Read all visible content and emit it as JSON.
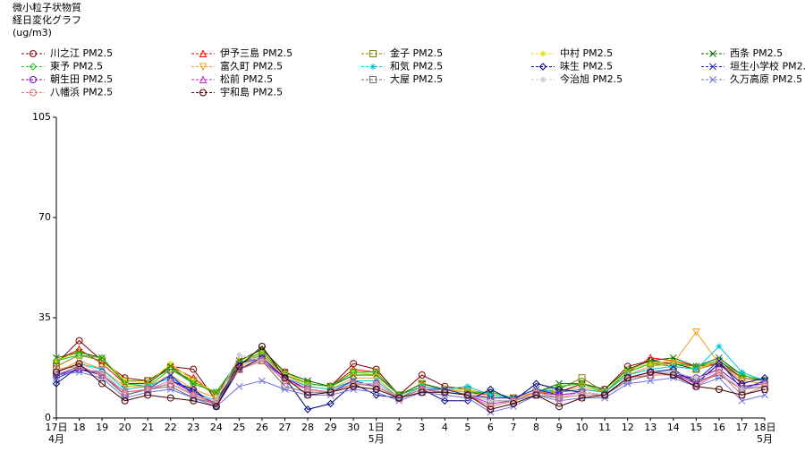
{
  "chart_data": {
    "type": "line",
    "title_lines": [
      "微小粒子状物質",
      "経日変化グラフ",
      "(ug/m3)"
    ],
    "categories": [
      "17日",
      "18",
      "19",
      "20",
      "21",
      "22",
      "23",
      "24",
      "25",
      "26",
      "27",
      "28",
      "29",
      "30",
      "1日",
      "2",
      "3",
      "4",
      "5",
      "6",
      "7",
      "8",
      "9",
      "10",
      "11",
      "12",
      "13",
      "14",
      "15",
      "16",
      "17",
      "18日"
    ],
    "month_labels": [
      "4月",
      null,
      null,
      null,
      null,
      null,
      null,
      null,
      null,
      null,
      null,
      null,
      null,
      null,
      "5月",
      null,
      null,
      null,
      null,
      null,
      null,
      null,
      null,
      null,
      null,
      null,
      null,
      null,
      null,
      null,
      null,
      "5月"
    ],
    "ylim": [
      0,
      105
    ],
    "yticks": [
      0,
      35,
      70,
      105
    ],
    "grid": false,
    "series": [
      {
        "name": "川之江 PM2.5",
        "color": "#800000",
        "marker": "circle",
        "values": [
          19,
          27,
          20,
          14,
          13,
          18,
          17,
          6,
          19,
          23,
          16,
          12,
          11,
          19,
          17,
          8,
          15,
          11,
          10,
          8,
          7,
          9,
          9,
          12,
          10,
          18,
          20,
          19,
          17,
          20,
          14,
          13
        ]
      },
      {
        "name": "伊予三島 PM2.5",
        "color": "#ff0000",
        "marker": "triangle",
        "values": [
          20,
          24,
          19,
          12,
          12,
          18,
          14,
          8,
          20,
          24,
          16,
          12,
          11,
          17,
          16,
          8,
          12,
          10,
          9,
          8,
          7,
          9,
          9,
          10,
          9,
          16,
          21,
          20,
          18,
          19,
          14,
          13
        ]
      },
      {
        "name": "金子 PM2.5",
        "color": "#808000",
        "marker": "square",
        "values": [
          18,
          22,
          20,
          13,
          13,
          17,
          13,
          8,
          19,
          22,
          15,
          12,
          11,
          16,
          16,
          8,
          12,
          10,
          10,
          8,
          7,
          9,
          10,
          14,
          9,
          16,
          19,
          18,
          17,
          19,
          14,
          13
        ]
      },
      {
        "name": "中村 PM2.5",
        "color": "#e0e000",
        "marker": "star",
        "values": [
          20,
          23,
          21,
          13,
          12,
          19,
          13,
          9,
          20,
          23,
          16,
          12,
          11,
          16,
          15,
          8,
          12,
          10,
          10,
          8,
          7,
          9,
          11,
          12,
          9,
          17,
          19,
          20,
          17,
          20,
          15,
          13
        ]
      },
      {
        "name": "西条 PM2.5",
        "color": "#006400",
        "marker": "x",
        "values": [
          21,
          23,
          21,
          12,
          12,
          18,
          12,
          9,
          20,
          24,
          16,
          13,
          11,
          15,
          15,
          8,
          12,
          10,
          9,
          9,
          7,
          9,
          12,
          12,
          10,
          17,
          20,
          21,
          18,
          21,
          15,
          13
        ]
      },
      {
        "name": "東予 PM2.5",
        "color": "#22c022",
        "marker": "diamond",
        "values": [
          20,
          22,
          21,
          12,
          11,
          17,
          12,
          9,
          19,
          23,
          15,
          12,
          11,
          16,
          16,
          8,
          11,
          10,
          9,
          9,
          7,
          9,
          11,
          12,
          9,
          16,
          19,
          19,
          18,
          20,
          15,
          13
        ]
      },
      {
        "name": "富久町 PM2.5",
        "color": "#f0a020",
        "marker": "downtriangle",
        "values": [
          16,
          20,
          17,
          11,
          11,
          15,
          10,
          7,
          18,
          21,
          15,
          11,
          10,
          14,
          14,
          7,
          11,
          10,
          9,
          7,
          7,
          9,
          9,
          11,
          9,
          15,
          18,
          19,
          30,
          19,
          13,
          12
        ]
      },
      {
        "name": "和気 PM2.5",
        "color": "#00c8d8",
        "marker": "star",
        "values": [
          16,
          19,
          17,
          10,
          11,
          14,
          9,
          6,
          17,
          21,
          14,
          11,
          10,
          13,
          13,
          7,
          11,
          10,
          11,
          8,
          7,
          10,
          9,
          10,
          9,
          15,
          17,
          18,
          17,
          25,
          16,
          13
        ]
      },
      {
        "name": "味生 PM2.5",
        "color": "#000080",
        "marker": "diamond",
        "values": [
          12,
          18,
          15,
          8,
          10,
          13,
          10,
          4,
          17,
          21,
          14,
          3,
          5,
          12,
          8,
          7,
          10,
          6,
          6,
          10,
          6,
          12,
          10,
          9,
          8,
          14,
          16,
          17,
          12,
          19,
          12,
          14
        ]
      },
      {
        "name": "垣生小学校 PM2.",
        "color": "#2020d0",
        "marker": "x",
        "values": [
          14,
          17,
          15,
          9,
          10,
          15,
          8,
          5,
          19,
          21,
          14,
          10,
          9,
          13,
          11,
          7,
          10,
          10,
          8,
          7,
          7,
          10,
          8,
          9,
          8,
          14,
          16,
          16,
          13,
          20,
          10,
          13
        ]
      },
      {
        "name": "朝生田 PM2.5",
        "color": "#8000c0",
        "marker": "circle",
        "values": [
          15,
          17,
          16,
          9,
          10,
          13,
          9,
          5,
          17,
          20,
          14,
          10,
          9,
          12,
          12,
          7,
          10,
          9,
          8,
          6,
          6,
          9,
          8,
          9,
          8,
          14,
          16,
          15,
          14,
          17,
          11,
          12
        ]
      },
      {
        "name": "松前 PM2.5",
        "color": "#d020d0",
        "marker": "triangle",
        "values": [
          15,
          18,
          15,
          9,
          10,
          12,
          8,
          5,
          17,
          20,
          13,
          10,
          9,
          12,
          12,
          7,
          10,
          9,
          8,
          5,
          6,
          9,
          8,
          9,
          8,
          14,
          15,
          15,
          12,
          16,
          10,
          12
        ]
      },
      {
        "name": "大屋 PM2.5",
        "color": "#707070",
        "marker": "square",
        "values": [
          15,
          18,
          15,
          8,
          10,
          11,
          7,
          5,
          17,
          20,
          11,
          9,
          9,
          12,
          11,
          7,
          9,
          9,
          8,
          6,
          6,
          8,
          7,
          9,
          8,
          13,
          15,
          15,
          13,
          15,
          10,
          11
        ]
      },
      {
        "name": "今治旭 PM2.5",
        "color": "#c8c8c8",
        "marker": "star",
        "values": [
          16,
          19,
          16,
          9,
          10,
          13,
          8,
          6,
          22,
          20,
          13,
          10,
          9,
          12,
          12,
          7,
          10,
          9,
          8,
          6,
          6,
          9,
          7,
          9,
          8,
          14,
          16,
          16,
          14,
          16,
          10,
          12
        ]
      },
      {
        "name": "久万高原 PM2.5",
        "color": "#7070e0",
        "marker": "x",
        "values": [
          15,
          16,
          14,
          7,
          9,
          10,
          7,
          4,
          11,
          13,
          10,
          8,
          8,
          10,
          9,
          6,
          9,
          8,
          7,
          2,
          4,
          8,
          6,
          7,
          7,
          12,
          13,
          14,
          11,
          14,
          6,
          8
        ]
      },
      {
        "name": "八幡浜 PM2.5",
        "color": "#e07070",
        "marker": "circle",
        "values": [
          17,
          18,
          15,
          9,
          10,
          12,
          8,
          5,
          17,
          20,
          13,
          10,
          9,
          12,
          11,
          7,
          10,
          9,
          8,
          4,
          6,
          9,
          7,
          8,
          8,
          14,
          15,
          15,
          11,
          16,
          8,
          11
        ]
      },
      {
        "name": "宇和島 PM2.5",
        "color": "#400000",
        "marker": "circle",
        "values": [
          16,
          19,
          12,
          6,
          8,
          7,
          6,
          4,
          18,
          25,
          14,
          8,
          9,
          11,
          10,
          7,
          9,
          9,
          8,
          3,
          5,
          8,
          4,
          7,
          8,
          14,
          16,
          15,
          11,
          10,
          8,
          10
        ]
      }
    ]
  }
}
